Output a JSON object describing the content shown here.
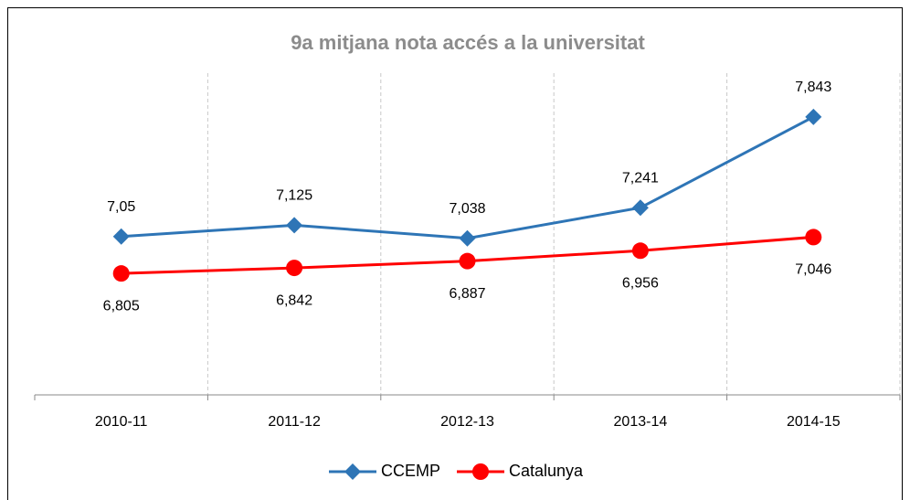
{
  "chart_data": {
    "type": "line",
    "title": "9a mitjana nota accés a la universitat",
    "categories": [
      "2010-11",
      "2011-12",
      "2012-13",
      "2013-14",
      "2014-15"
    ],
    "series": [
      {
        "name": "CCEMP",
        "color": "#2e75b6",
        "marker": "diamond",
        "values": [
          7.05,
          7.125,
          7.038,
          7.241,
          7.843
        ],
        "value_labels": [
          "7,05",
          "7,125",
          "7,038",
          "7,241",
          "7,843"
        ],
        "label_position": "above"
      },
      {
        "name": "Catalunya",
        "color": "#ff0000",
        "marker": "circle",
        "values": [
          6.805,
          6.842,
          6.887,
          6.956,
          7.046
        ],
        "value_labels": [
          "6,805",
          "6,842",
          "6,887",
          "6,956",
          "7,046"
        ],
        "label_position": "below"
      }
    ],
    "ylim": [
      6,
      8
    ],
    "grid": "vertical-dashed",
    "legend": "bottom"
  }
}
